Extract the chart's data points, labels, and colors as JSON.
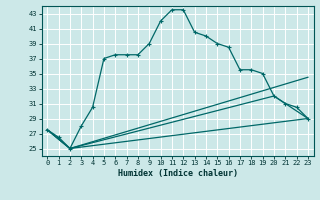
{
  "title": "",
  "xlabel": "Humidex (Indice chaleur)",
  "bg_color": "#cce8e8",
  "grid_color": "#ffffff",
  "line_color": "#006868",
  "xlim": [
    -0.5,
    23.5
  ],
  "ylim": [
    24.0,
    44.0
  ],
  "yticks": [
    25,
    27,
    29,
    31,
    33,
    35,
    37,
    39,
    41,
    43
  ],
  "xticks": [
    0,
    1,
    2,
    3,
    4,
    5,
    6,
    7,
    8,
    9,
    10,
    11,
    12,
    13,
    14,
    15,
    16,
    17,
    18,
    19,
    20,
    21,
    22,
    23
  ],
  "series1_x": [
    0,
    1,
    2,
    3,
    4,
    5,
    6,
    7,
    8,
    9,
    10,
    11,
    12,
    13,
    14,
    15,
    16,
    17,
    18,
    19,
    20,
    21,
    22,
    23
  ],
  "series1_y": [
    27.5,
    26.5,
    25.0,
    28.0,
    30.5,
    37.0,
    37.5,
    37.5,
    37.5,
    39.0,
    42.0,
    43.5,
    43.5,
    40.5,
    40.0,
    39.0,
    38.5,
    35.5,
    35.5,
    35.0,
    32.0,
    31.0,
    30.5,
    29.0
  ],
  "line2_x": [
    0,
    2,
    23
  ],
  "line2_y": [
    27.5,
    25.0,
    29.0
  ],
  "line3_x": [
    0,
    2,
    23
  ],
  "line3_y": [
    27.5,
    25.0,
    34.5
  ],
  "line4_x": [
    0,
    2,
    20,
    23
  ],
  "line4_y": [
    27.5,
    25.0,
    32.0,
    29.0
  ]
}
